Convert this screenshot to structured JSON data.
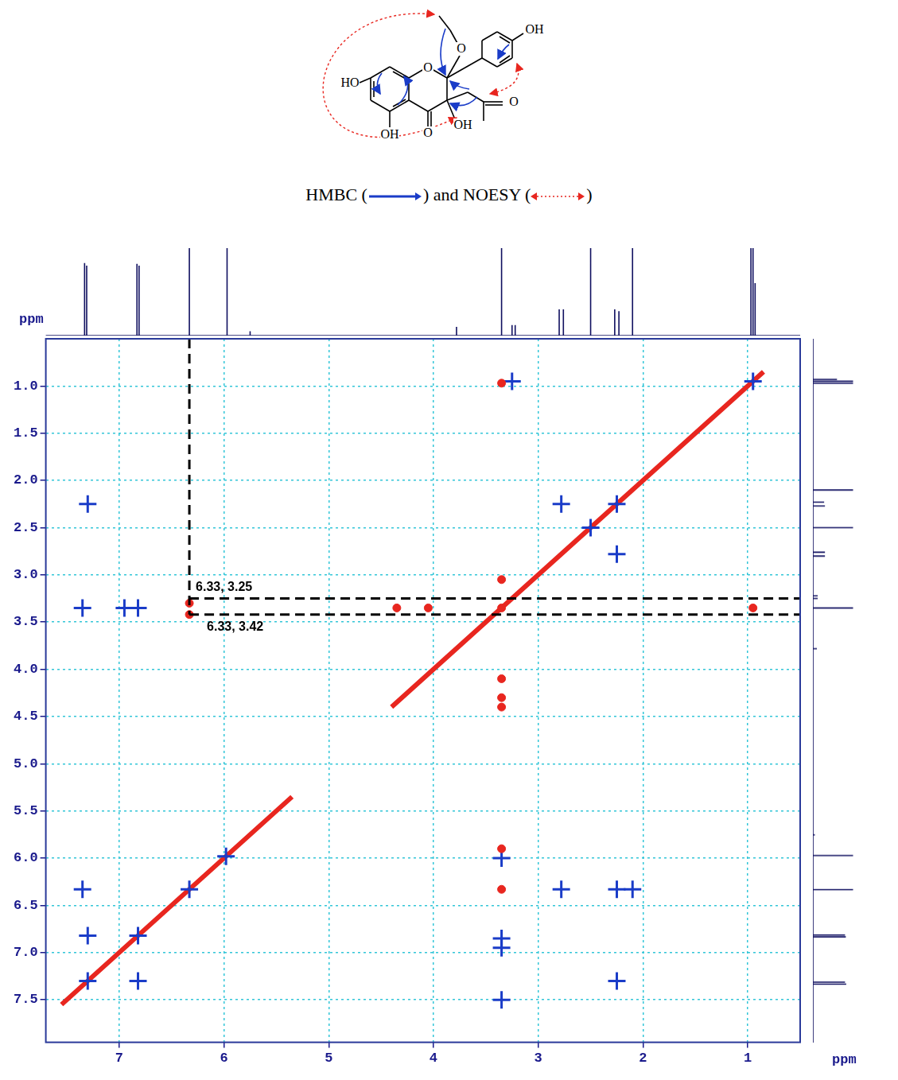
{
  "structure": {
    "labels": [
      "HO",
      "O",
      "O",
      "OH",
      "OH",
      "O",
      "OH",
      "O"
    ]
  },
  "caption": {
    "parts": [
      "HMBC (",
      ") and NOESY (",
      ")"
    ]
  },
  "chart_data": {
    "type": "scatter",
    "x_label": "ppm",
    "y_label": "ppm",
    "xlim": [
      7.7,
      0.5
    ],
    "xticks": [
      7,
      6,
      5,
      4,
      3,
      2,
      1
    ],
    "ylim": [
      7.95,
      0.5
    ],
    "yticks": [
      {
        "value": 1,
        "label": "1.0"
      },
      1.5,
      {
        "value": 2,
        "label": "2.0"
      },
      2.5,
      {
        "value": 3,
        "label": "3.0"
      },
      3.5,
      {
        "value": 4,
        "label": "4.0"
      },
      4.5,
      {
        "value": 5,
        "label": "5.0"
      },
      5.5,
      {
        "value": 6,
        "label": "6.0"
      },
      6.5,
      {
        "value": 7,
        "label": "7.0"
      },
      7.5
    ],
    "grid": true,
    "series": [
      {
        "type": "line",
        "color": "#e8261f",
        "x": [
          7.55,
          5.35,
          null,
          4.4,
          0.85
        ],
        "y": [
          7.55,
          5.35,
          null,
          4.4,
          0.85
        ]
      },
      {
        "type": "scatter",
        "marker": "circle",
        "color": "#e8261f",
        "x": [
          6.33,
          6.33,
          3.35,
          3.35,
          4.35,
          4.05,
          3.35,
          3.35,
          3.35,
          3.35,
          0.95,
          3.35,
          3.35
        ],
        "y": [
          3.42,
          3.3,
          6.33,
          5.9,
          3.35,
          3.35,
          4.1,
          4.3,
          4.4,
          0.97,
          3.35,
          3.35,
          3.05
        ]
      },
      {
        "type": "scatter",
        "marker": "cross",
        "color": "#1a3cc8",
        "x": [
          7.3,
          6.82,
          7.3,
          6.82,
          6.33,
          5.98,
          2.78,
          2.25,
          2.5,
          2.25,
          0.95,
          7.3,
          2.25,
          2.25,
          2.1,
          2.78,
          7.35,
          7.35,
          6.95,
          6.82,
          3.35,
          3.35,
          3.35,
          3.35,
          3.25
        ],
        "y": [
          7.3,
          6.82,
          6.82,
          7.3,
          6.33,
          5.98,
          2.25,
          2.78,
          2.5,
          2.25,
          0.95,
          2.25,
          7.3,
          6.33,
          6.33,
          6.33,
          6.33,
          3.35,
          3.35,
          3.35,
          6.0,
          7.5,
          6.85,
          6.95,
          0.95
        ]
      }
    ],
    "annotations": [
      {
        "text": "6.33, 3.25",
        "x": 6.33,
        "y": 3.25
      },
      {
        "text": "6.33, 3.42",
        "x": 6.33,
        "y": 3.42
      }
    ],
    "projection": {
      "ppm": [
        7.33,
        7.31,
        6.83,
        6.81,
        6.33,
        5.97,
        5.75,
        3.78,
        3.35,
        3.25,
        3.22,
        2.8,
        2.76,
        2.5,
        2.27,
        2.23,
        2.1,
        0.97,
        0.95,
        0.93
      ],
      "intensity": [
        0.83,
        0.8,
        0.82,
        0.8,
        1.0,
        1.0,
        0.05,
        0.1,
        1.0,
        0.12,
        0.12,
        0.3,
        0.3,
        1.0,
        0.3,
        0.28,
        1.0,
        1.0,
        1.0,
        0.6
      ]
    }
  }
}
